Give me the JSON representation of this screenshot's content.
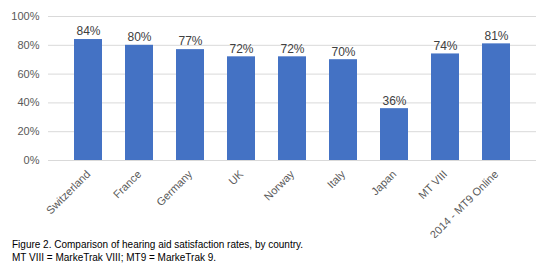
{
  "chart_data": {
    "type": "bar",
    "caption": [
      "Figure 2. Comparison of hearing aid satisfaction rates, by country.",
      "MT VIII = MarkeTrak VIII; MT9 = MarkeTrak 9."
    ],
    "categories": [
      "Switzerland",
      "France",
      "Germany",
      "UK",
      "Norway",
      "Italy",
      "Japan",
      "MT VIII",
      "2014 - MT9 Online"
    ],
    "values": [
      84,
      80,
      77,
      72,
      72,
      70,
      36,
      74,
      81
    ],
    "value_labels": [
      "84%",
      "80%",
      "77%",
      "72%",
      "72%",
      "70%",
      "36%",
      "74%",
      "81%"
    ],
    "color": "#4472c4",
    "ylim": [
      0,
      100
    ],
    "yticks": [
      {
        "value": 0,
        "label": "0%"
      },
      {
        "value": 20,
        "label": "20%"
      },
      {
        "value": 40,
        "label": "40%"
      },
      {
        "value": 60,
        "label": "60%"
      },
      {
        "value": 80,
        "label": "80%"
      },
      {
        "value": 100,
        "label": "100%"
      }
    ],
    "grid": true,
    "data_labels": true
  }
}
